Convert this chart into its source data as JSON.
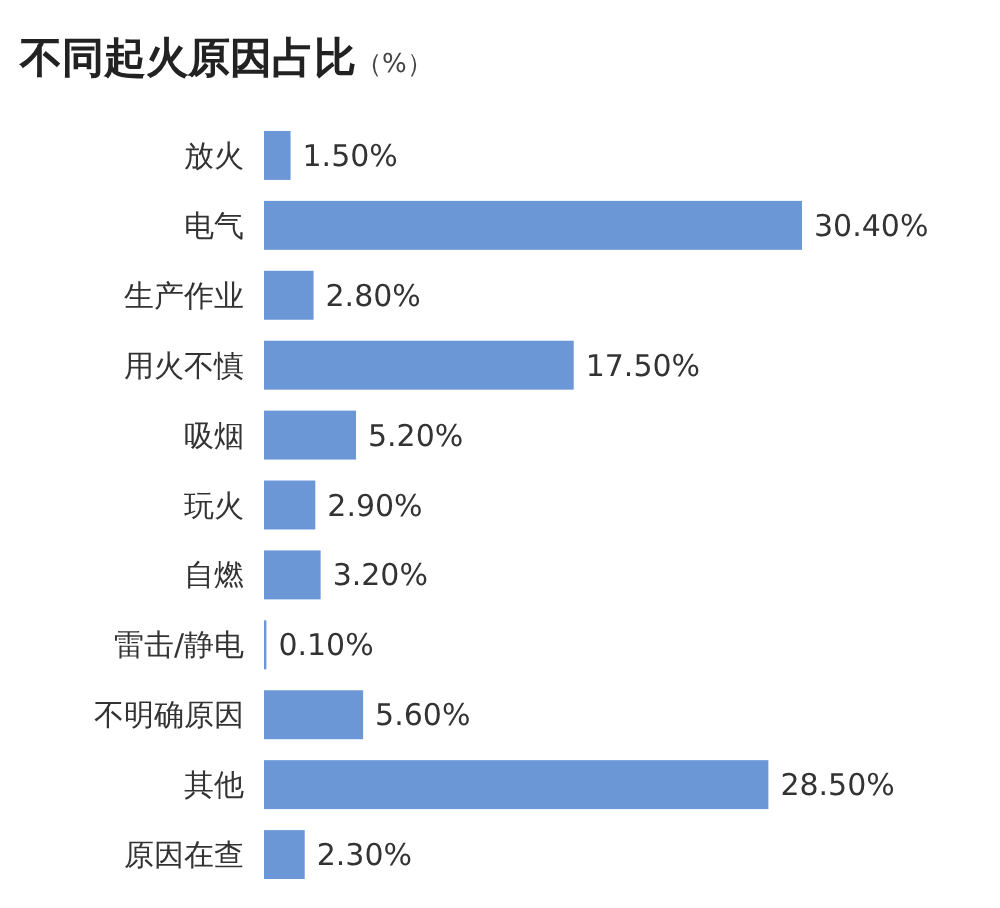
{
  "chart_data": {
    "type": "bar",
    "orientation": "horizontal",
    "title": "不同起火原因占比（%）",
    "categories": [
      "放火",
      "电气",
      "生产作业",
      "用火不慎",
      "吸烟",
      "玩火",
      "自燃",
      "雷击/静电",
      "不明确原因",
      "其他",
      "原因在查"
    ],
    "values": [
      1.5,
      30.4,
      2.8,
      17.5,
      5.2,
      2.9,
      3.2,
      0.1,
      5.6,
      28.5,
      2.3
    ],
    "value_labels": [
      "1.50%",
      "30.40%",
      "2.80%",
      "17.50%",
      "5.20%",
      "2.90%",
      "3.20%",
      "0.10%",
      "5.60%",
      "28.50%",
      "2.30%"
    ],
    "color": "#6b97d6"
  }
}
